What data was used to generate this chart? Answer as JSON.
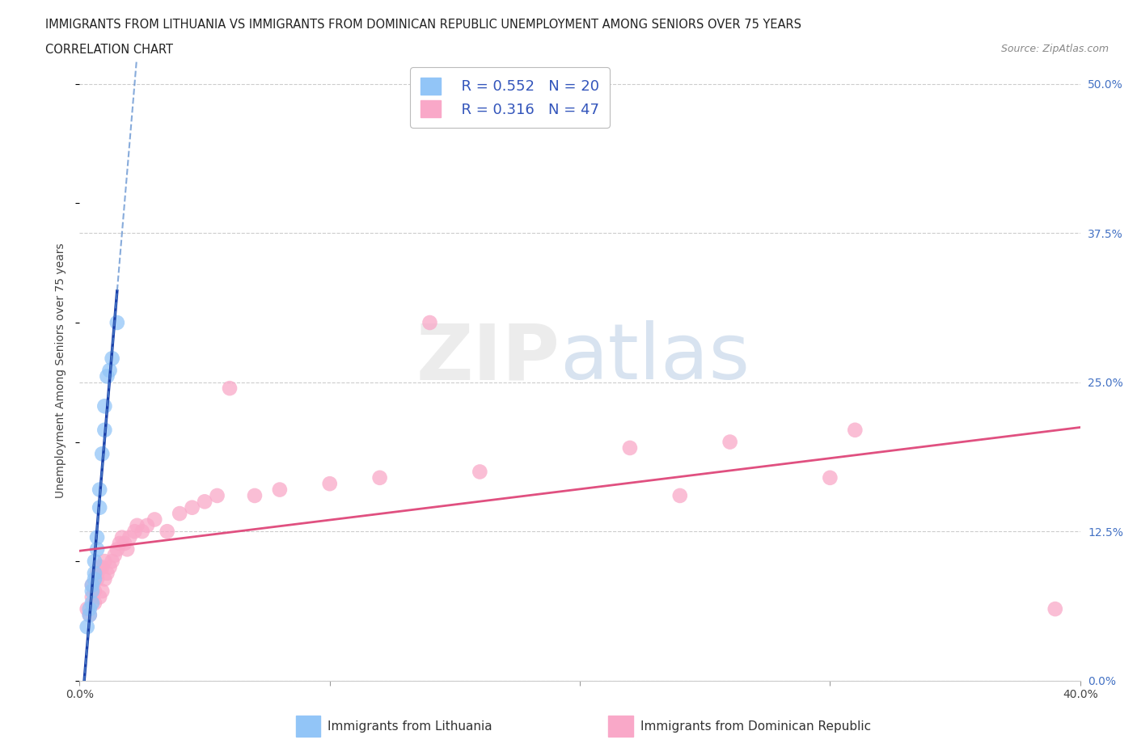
{
  "title_line1": "IMMIGRANTS FROM LITHUANIA VS IMMIGRANTS FROM DOMINICAN REPUBLIC UNEMPLOYMENT AMONG SENIORS OVER 75 YEARS",
  "title_line2": "CORRELATION CHART",
  "source": "Source: ZipAtlas.com",
  "ylabel": "Unemployment Among Seniors over 75 years",
  "xlim": [
    0.0,
    0.4
  ],
  "ylim": [
    0.0,
    0.52
  ],
  "xticks": [
    0.0,
    0.1,
    0.2,
    0.3,
    0.4
  ],
  "xticklabels": [
    "0.0%",
    "",
    "",
    "",
    "40.0%"
  ],
  "yticks": [
    0.0,
    0.125,
    0.25,
    0.375,
    0.5
  ],
  "yticklabels_right": [
    "0.0%",
    "12.5%",
    "25.0%",
    "37.5%",
    "50.0%"
  ],
  "color_lithuania": "#92C5F7",
  "color_dominican": "#F9A8C8",
  "color_line_lithuania": "#1A3FAA",
  "color_line_dominican": "#E05080",
  "watermark_zip": "ZIP",
  "watermark_atlas": "atlas",
  "lithuania_x": [
    0.003,
    0.004,
    0.004,
    0.005,
    0.005,
    0.005,
    0.006,
    0.006,
    0.006,
    0.007,
    0.007,
    0.008,
    0.008,
    0.009,
    0.01,
    0.01,
    0.011,
    0.012,
    0.013,
    0.015
  ],
  "lithuania_y": [
    0.045,
    0.055,
    0.06,
    0.065,
    0.075,
    0.08,
    0.085,
    0.09,
    0.1,
    0.11,
    0.12,
    0.145,
    0.16,
    0.19,
    0.21,
    0.23,
    0.255,
    0.26,
    0.27,
    0.3
  ],
  "dominican_x": [
    0.003,
    0.004,
    0.005,
    0.005,
    0.006,
    0.006,
    0.007,
    0.007,
    0.008,
    0.008,
    0.009,
    0.009,
    0.01,
    0.01,
    0.011,
    0.012,
    0.013,
    0.014,
    0.015,
    0.016,
    0.017,
    0.018,
    0.019,
    0.02,
    0.022,
    0.023,
    0.025,
    0.027,
    0.03,
    0.035,
    0.04,
    0.045,
    0.05,
    0.055,
    0.06,
    0.07,
    0.08,
    0.1,
    0.12,
    0.14,
    0.16,
    0.22,
    0.24,
    0.26,
    0.3,
    0.31,
    0.39
  ],
  "dominican_y": [
    0.06,
    0.055,
    0.07,
    0.08,
    0.065,
    0.075,
    0.085,
    0.09,
    0.07,
    0.095,
    0.075,
    0.095,
    0.085,
    0.1,
    0.09,
    0.095,
    0.1,
    0.105,
    0.11,
    0.115,
    0.12,
    0.115,
    0.11,
    0.12,
    0.125,
    0.13,
    0.125,
    0.13,
    0.135,
    0.125,
    0.14,
    0.145,
    0.15,
    0.155,
    0.245,
    0.155,
    0.16,
    0.165,
    0.17,
    0.3,
    0.175,
    0.195,
    0.155,
    0.2,
    0.17,
    0.21,
    0.06
  ],
  "lit_line_x0": 0.0,
  "lit_line_x1": 0.017,
  "dom_line_x0": 0.0,
  "dom_line_x1": 0.4,
  "dom_line_y0": 0.085,
  "dom_line_y1": 0.248
}
